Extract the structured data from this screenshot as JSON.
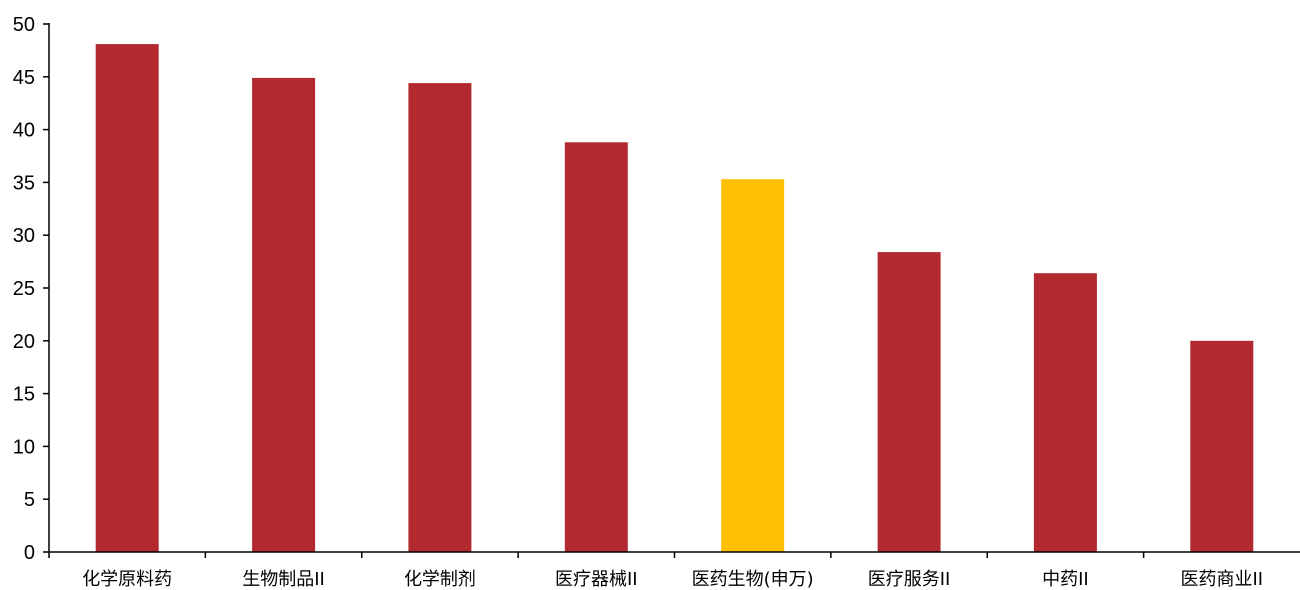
{
  "chart_data": {
    "type": "bar",
    "title": "",
    "xlabel": "",
    "ylabel": "",
    "categories": [
      "化学原料药",
      "生物制品II",
      "化学制剂",
      "医疗器械II",
      "医药生物(申万)",
      "医疗服务II",
      "中药II",
      "医药商业II"
    ],
    "values": [
      48.1,
      44.9,
      44.4,
      38.8,
      35.3,
      28.4,
      26.4,
      20.0
    ],
    "highlight_index": 4,
    "colors": {
      "bar": "#b22a30",
      "highlight": "#fec000",
      "axis": "#000000"
    },
    "ylim": [
      0,
      50
    ],
    "yticks": [
      0,
      5,
      10,
      15,
      20,
      25,
      30,
      35,
      40,
      45,
      50
    ],
    "grid": false,
    "legend": "none"
  }
}
